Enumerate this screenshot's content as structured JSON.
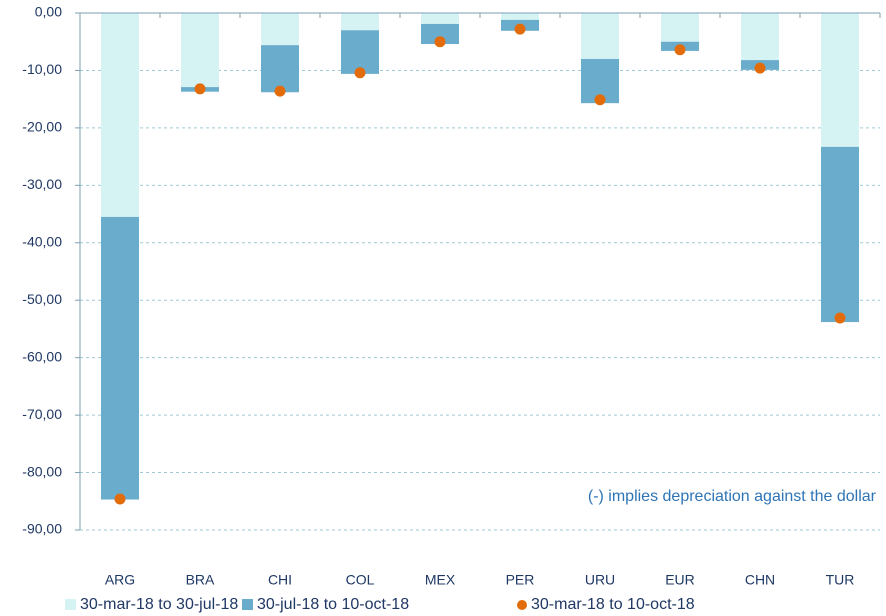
{
  "chart_data": {
    "type": "stacked_bar_with_points",
    "annotation": "(-) implies depreciation against the dollar",
    "categories": [
      "ARG",
      "BRA",
      "CHI",
      "COL",
      "MEX",
      "PER",
      "URU",
      "EUR",
      "CHN",
      "TUR"
    ],
    "series": [
      {
        "name": "30-mar-18 to 30-jul-18",
        "color": "#d6f3f3",
        "kind": "bar",
        "values": [
          -35.5,
          -12.9,
          -5.6,
          -3.0,
          -1.9,
          -1.2,
          -8.0,
          -5.0,
          -8.2,
          -23.3
        ]
      },
      {
        "name": "30-jul-18 to 10-oct-18",
        "color": "#6aaccc",
        "kind": "bar",
        "values": [
          -49.2,
          -0.8,
          -8.2,
          -7.6,
          -3.5,
          -1.9,
          -7.7,
          -1.6,
          -1.7,
          -30.5
        ]
      },
      {
        "name": "30-mar-18 to 10-oct-18",
        "color": "#e36c0a",
        "kind": "point",
        "values": [
          -84.6,
          -13.2,
          -13.6,
          -10.4,
          -5.0,
          -2.8,
          -15.1,
          -6.4,
          -9.6,
          -53.1
        ]
      }
    ],
    "ylim": [
      -90,
      0
    ],
    "yticks": [
      {
        "value": 0,
        "label": "0,00"
      },
      {
        "value": -10,
        "label": "-10,00"
      },
      {
        "value": -20,
        "label": "-20,00"
      },
      {
        "value": -30,
        "label": "-30,00"
      },
      {
        "value": -40,
        "label": "-40,00"
      },
      {
        "value": -50,
        "label": "-50,00"
      },
      {
        "value": -60,
        "label": "-60,00"
      },
      {
        "value": -70,
        "label": "-70,00"
      },
      {
        "value": -80,
        "label": "-80,00"
      },
      {
        "value": -90,
        "label": "-90,00"
      }
    ],
    "grid": true
  }
}
